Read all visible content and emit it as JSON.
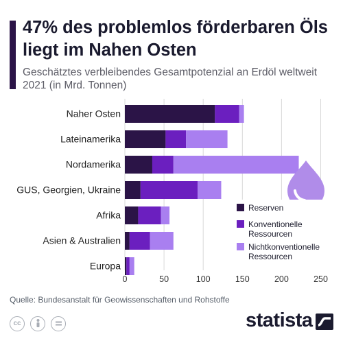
{
  "title": "47% des problemlos förderbaren Öls liegt im Nahen Osten",
  "subtitle": "Geschätztes verbleibendes Gesamtpotenzial an Erdöl weltweit 2021 (in Mrd. Tonnen)",
  "source": "Quelle: Bundesanstalt für Geowissenschaften und Rohstoffe",
  "brand": "statista",
  "license_icons": [
    "cc-icon",
    "attribution-icon",
    "noderivs-icon"
  ],
  "colors": {
    "reserven": "#2b1447",
    "konventionelle": "#6b1fbf",
    "nichtkonventionelle": "#a97ff0",
    "grid": "#d9d9d9",
    "drop": "#b08ce9"
  },
  "chart_data": {
    "type": "bar",
    "orientation": "horizontal",
    "stacked": true,
    "categories": [
      "Naher Osten",
      "Lateinamerika",
      "Nordamerika",
      "GUS, Georgien, Ukraine",
      "Afrika",
      "Asien & Australien",
      "Europa"
    ],
    "series": [
      {
        "name": "Reserven",
        "values": [
          115,
          52,
          35,
          20,
          17,
          6,
          2
        ]
      },
      {
        "name": "Konventionelle Ressourcen",
        "values": [
          31,
          26,
          27,
          73,
          29,
          26,
          4
        ]
      },
      {
        "name": "Nichtkonventionelle Ressourcen",
        "values": [
          6,
          53,
          160,
          30,
          11,
          30,
          6
        ]
      }
    ],
    "xlim": [
      0,
      270
    ],
    "xticks": [
      0,
      50,
      100,
      150,
      200,
      250
    ],
    "grid": true,
    "legend": {
      "position": "right",
      "entries": [
        "Reserven",
        "Konventionelle\nRessourcen",
        "Nichtkonventionelle\nRessourcen"
      ]
    }
  }
}
